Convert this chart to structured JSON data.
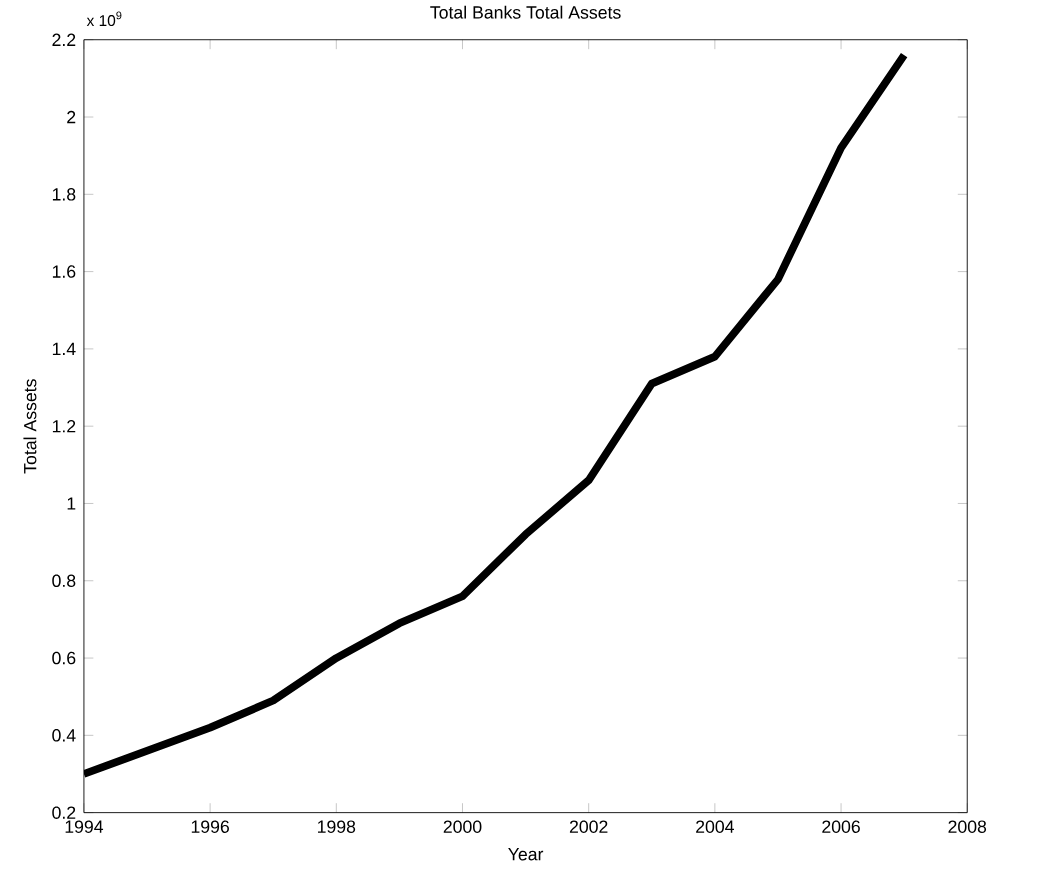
{
  "chart_data": {
    "type": "line",
    "title": "Total Banks Total Assets",
    "xlabel": "Year",
    "ylabel": "Total Assets",
    "annotations": [
      "x 10$^{9}$"
    ],
    "x": [
      1994,
      1995,
      1996,
      1997,
      1998,
      1999,
      2000,
      2001,
      2002,
      2003,
      2004,
      2005,
      2006,
      2007
    ],
    "series": [
      {
        "color": "#000000",
        "values": [
          0.3,
          0.36,
          0.42,
          0.49,
          0.6,
          0.69,
          0.76,
          0.92,
          1.06,
          1.31,
          1.38,
          1.58,
          1.92,
          2.16
        ]
      }
    ],
    "xlim": [
      1994,
      2008
    ],
    "ylim": [
      0.2,
      2.2
    ],
    "xticks": [
      1994,
      1996,
      1998,
      2000,
      2002,
      2004,
      2006,
      2008
    ],
    "yticks": [
      0.2,
      0.4,
      0.6,
      0.8,
      1,
      1.2,
      1.4,
      1.6,
      1.8,
      2,
      2.2
    ],
    "grid": false,
    "marker": "none",
    "line_style": "solid"
  }
}
